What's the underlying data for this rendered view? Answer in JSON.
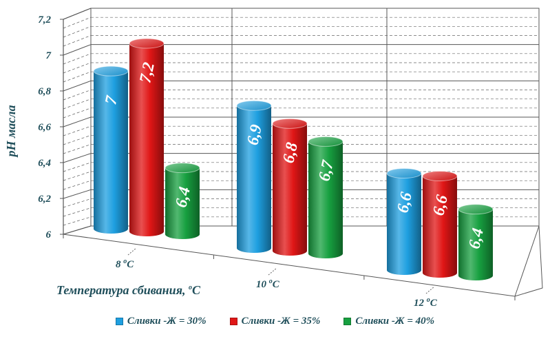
{
  "chart_data": {
    "type": "bar",
    "xlabel": "Температура сбивания,",
    "xlabel_unit": "oC",
    "ylabel": "pH масла",
    "ylim": [
      6,
      7.2
    ],
    "yticks": [
      "6",
      "6,2",
      "6,4",
      "6,6",
      "6,8",
      "7",
      "7,2"
    ],
    "categories": [
      {
        "num": "8",
        "unit": "oC"
      },
      {
        "num": "10",
        "unit": "oC"
      },
      {
        "num": "12",
        "unit": "oC"
      }
    ],
    "series": [
      {
        "name": "Сливки -Ж  = 30%",
        "color": "#1e9fe0",
        "values": [
          7,
          6.9,
          6.6
        ],
        "labels": [
          "7",
          "6,9",
          "6,6"
        ]
      },
      {
        "name": "Сливки -Ж  = 35%",
        "color": "#e01616",
        "values": [
          7.2,
          6.8,
          6.6
        ],
        "labels": [
          "7,2",
          "6,8",
          "6,6"
        ]
      },
      {
        "name": "Сливки -Ж  = 40%",
        "color": "#17a040",
        "values": [
          6.4,
          6.7,
          6.4
        ],
        "labels": [
          "6,4",
          "6,7",
          "6,4"
        ]
      }
    ],
    "legend_position": "bottom",
    "grid": true
  }
}
